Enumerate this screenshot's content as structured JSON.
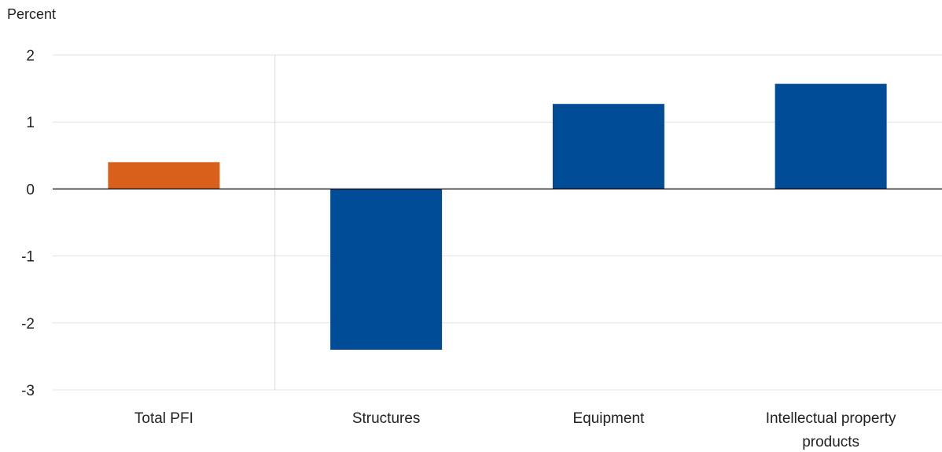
{
  "chart_data": {
    "type": "bar",
    "ylabel": "Percent",
    "categories": [
      "Total PFI",
      "Structures",
      "Equipment",
      "Intellectual property products"
    ],
    "category_label_lines": [
      [
        "Total PFI"
      ],
      [
        "Structures"
      ],
      [
        "Equipment"
      ],
      [
        "Intellectual property",
        "products"
      ]
    ],
    "values": [
      0.4,
      -2.4,
      1.27,
      1.57
    ],
    "bar_colors": [
      "#d9601a",
      "#004c97",
      "#004c97",
      "#004c97"
    ],
    "ylim": [
      -3,
      2
    ],
    "yticks": [
      2,
      1,
      0,
      -1,
      -2,
      -3
    ],
    "grid": true,
    "separator_after_category": 0
  },
  "colors": {
    "gridline": "#e3e3e3",
    "zero_line": "#000000",
    "separator": "#d9d9d9",
    "text": "#222222"
  }
}
